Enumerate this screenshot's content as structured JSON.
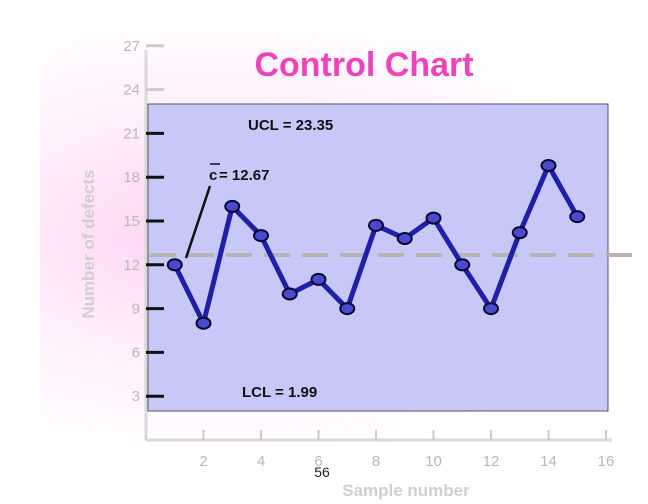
{
  "page_number": "56",
  "chart_data": {
    "type": "line",
    "title": "Control Chart",
    "xlabel": "Sample number",
    "ylabel": "Number of defects",
    "x_ticks": [
      2,
      4,
      6,
      8,
      10,
      12,
      14,
      16
    ],
    "y_ticks": [
      3,
      6,
      9,
      12,
      15,
      18,
      21,
      24,
      27
    ],
    "xlim": [
      0,
      16
    ],
    "ylim": [
      0,
      27
    ],
    "x": [
      1,
      2,
      3,
      4,
      5,
      6,
      7,
      8,
      9,
      10,
      11,
      12,
      13,
      14,
      15
    ],
    "values": [
      12,
      8,
      16,
      14,
      10,
      11,
      9,
      14.7,
      13.8,
      15.2,
      12,
      9,
      14.2,
      18.8,
      15.3
    ],
    "ucl": 23.35,
    "lcl": 1.99,
    "center": 12.67,
    "ucl_label": "UCL = 23.35",
    "lcl_label": "LCL = 1.99",
    "center_symbol": "c",
    "center_label_value": " = 12.67",
    "grid": false,
    "colors": {
      "plot_bg": "#c8c8f8",
      "line": "#1f1fa8",
      "marker": "#4a4ad0",
      "center_line": "#b4b4b4",
      "title": "#ee44bb"
    }
  }
}
